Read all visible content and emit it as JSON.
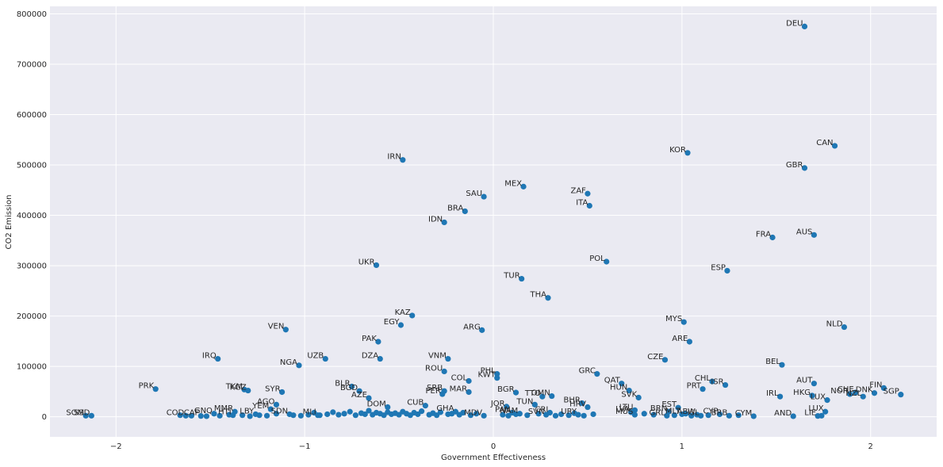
{
  "chart_data": {
    "type": "scatter",
    "xlabel": "Government Effectiveness",
    "ylabel": "CO2 Emission",
    "xlim": [
      -2.35,
      2.35
    ],
    "ylim": [
      -40000,
      815000
    ],
    "xticks": [
      -2,
      -1,
      0,
      1,
      2
    ],
    "xtick_labels": [
      "−2",
      "−1",
      "0",
      "1",
      "2"
    ],
    "yticks": [
      0,
      100000,
      200000,
      300000,
      400000,
      500000,
      600000,
      700000,
      800000
    ],
    "ytick_labels": [
      "0",
      "100000",
      "200000",
      "300000",
      "400000",
      "500000",
      "600000",
      "700000",
      "800000"
    ],
    "grid": true,
    "marker_color": "#1f77b4",
    "background": "#eaeaf2",
    "points": [
      {
        "label": "DEU",
        "x": 1.65,
        "y": 775000
      },
      {
        "label": "CAN",
        "x": 1.81,
        "y": 538000
      },
      {
        "label": "KOR",
        "x": 1.03,
        "y": 524000
      },
      {
        "label": "GBR",
        "x": 1.65,
        "y": 494000
      },
      {
        "label": "IRN",
        "x": -0.48,
        "y": 510000
      },
      {
        "label": "MEX",
        "x": 0.16,
        "y": 457000
      },
      {
        "label": "ZAF",
        "x": 0.5,
        "y": 443000
      },
      {
        "label": "SAU",
        "x": -0.05,
        "y": 437000
      },
      {
        "label": "ITA",
        "x": 0.51,
        "y": 419000
      },
      {
        "label": "BRA",
        "x": -0.15,
        "y": 408000
      },
      {
        "label": "IDN",
        "x": -0.26,
        "y": 386000
      },
      {
        "label": "AUS",
        "x": 1.7,
        "y": 361000
      },
      {
        "label": "FRA",
        "x": 1.48,
        "y": 356000
      },
      {
        "label": "POL",
        "x": 0.6,
        "y": 308000
      },
      {
        "label": "UKR",
        "x": -0.62,
        "y": 301000
      },
      {
        "label": "ESP",
        "x": 1.24,
        "y": 290000
      },
      {
        "label": "TUR",
        "x": 0.15,
        "y": 274000
      },
      {
        "label": "THA",
        "x": 0.29,
        "y": 236000
      },
      {
        "label": "KAZ",
        "x": -0.43,
        "y": 201000
      },
      {
        "label": "MYS",
        "x": 1.01,
        "y": 188000
      },
      {
        "label": "EGY",
        "x": -0.49,
        "y": 182000
      },
      {
        "label": "NLD",
        "x": 1.86,
        "y": 178000
      },
      {
        "label": "VEN",
        "x": -1.1,
        "y": 173000
      },
      {
        "label": "ARG",
        "x": -0.06,
        "y": 172000
      },
      {
        "label": "ARE",
        "x": 1.04,
        "y": 149000
      },
      {
        "label": "PAK",
        "x": -0.61,
        "y": 149000
      },
      {
        "label": "IRQ",
        "x": -1.46,
        "y": 115000
      },
      {
        "label": "UZB",
        "x": -0.89,
        "y": 115000
      },
      {
        "label": "DZA",
        "x": -0.6,
        "y": 115000
      },
      {
        "label": "VNM",
        "x": -0.24,
        "y": 115000
      },
      {
        "label": "CZE",
        "x": 0.91,
        "y": 113000
      },
      {
        "label": "BEL",
        "x": 1.53,
        "y": 103000
      },
      {
        "label": "NGA",
        "x": -1.03,
        "y": 102000
      },
      {
        "label": "ROU",
        "x": -0.26,
        "y": 90000
      },
      {
        "label": "PHL",
        "x": 0.02,
        "y": 85000
      },
      {
        "label": "GRC",
        "x": 0.55,
        "y": 85000
      },
      {
        "label": "KWT",
        "x": 0.02,
        "y": 77000
      },
      {
        "label": "COL",
        "x": -0.13,
        "y": 71000
      },
      {
        "label": "CHL",
        "x": 1.16,
        "y": 70000
      },
      {
        "label": "QAT",
        "x": 0.68,
        "y": 66000
      },
      {
        "label": "AUT",
        "x": 1.7,
        "y": 66000
      },
      {
        "label": "ISR",
        "x": 1.23,
        "y": 63000
      },
      {
        "label": "FIN",
        "x": 2.07,
        "y": 57000
      },
      {
        "label": "PRK",
        "x": -1.79,
        "y": 55000
      },
      {
        "label": "PRT",
        "x": 1.11,
        "y": 55000
      },
      {
        "label": "HUN",
        "x": 0.72,
        "y": 52000
      },
      {
        "label": "TKM",
        "x": -1.32,
        "y": 54000
      },
      {
        "label": "KGZ",
        "x": -1.3,
        "y": 52000
      },
      {
        "label": "BLR",
        "x": -0.75,
        "y": 60000
      },
      {
        "label": "SYR",
        "x": -1.12,
        "y": 49000
      },
      {
        "label": "BGD",
        "x": -0.71,
        "y": 51000
      },
      {
        "label": "SRB",
        "x": -0.26,
        "y": 51000
      },
      {
        "label": "MAR",
        "x": -0.13,
        "y": 49000
      },
      {
        "label": "PER",
        "x": -0.27,
        "y": 45000
      },
      {
        "label": "BGR",
        "x": 0.12,
        "y": 48000
      },
      {
        "label": "CHE",
        "x": 1.92,
        "y": 48000
      },
      {
        "label": "NOR",
        "x": 1.89,
        "y": 45000
      },
      {
        "label": "DNK",
        "x": 2.02,
        "y": 47000
      },
      {
        "label": "SGP",
        "x": 2.16,
        "y": 44000
      },
      {
        "label": "NZL",
        "x": 1.96,
        "y": 40000
      },
      {
        "label": "HKG",
        "x": 1.69,
        "y": 42000
      },
      {
        "label": "IRL",
        "x": 1.52,
        "y": 40000
      },
      {
        "label": "OMN",
        "x": 0.31,
        "y": 41000
      },
      {
        "label": "TTO",
        "x": 0.26,
        "y": 40000
      },
      {
        "label": "SVK",
        "x": 0.77,
        "y": 38000
      },
      {
        "label": "LUX",
        "x": 1.76,
        "y": 10000
      },
      {
        "label": "ARE2",
        "x": 1.77,
        "y": 33000
      },
      {
        "label": "AZE",
        "x": -0.66,
        "y": 37000
      },
      {
        "label": "EST",
        "x": 0.98,
        "y": 18000
      },
      {
        "label": "BHR",
        "x": 0.47,
        "y": 27000
      },
      {
        "label": "HRV",
        "x": 0.5,
        "y": 19000
      },
      {
        "label": "JOR",
        "x": 0.07,
        "y": 20000
      },
      {
        "label": "TUN",
        "x": 0.22,
        "y": 24000
      },
      {
        "label": "CUB",
        "x": -0.36,
        "y": 22000
      },
      {
        "label": "DOM",
        "x": -0.56,
        "y": 19000
      },
      {
        "label": "AGO",
        "x": -1.15,
        "y": 24000
      },
      {
        "label": "YEM",
        "x": -1.18,
        "y": 15000
      },
      {
        "label": "LTU",
        "x": 0.75,
        "y": 13000
      },
      {
        "label": "LVA",
        "x": 0.73,
        "y": 9000
      },
      {
        "label": "SOM",
        "x": -2.16,
        "y": 2000
      },
      {
        "label": "SSD",
        "x": -2.13,
        "y": 2000
      },
      {
        "label": "COD",
        "x": -1.63,
        "y": 2000
      },
      {
        "label": "CAF",
        "x": -1.55,
        "y": 1500
      },
      {
        "label": "GNQ",
        "x": -1.48,
        "y": 6000
      },
      {
        "label": "MMR",
        "x": -1.37,
        "y": 10000
      },
      {
        "label": "HTI",
        "x": -1.38,
        "y": 3000
      },
      {
        "label": "LBY",
        "x": -1.26,
        "y": 5000
      },
      {
        "label": "SDN",
        "x": -1.08,
        "y": 5000
      },
      {
        "label": "MLI",
        "x": -0.93,
        "y": 3000
      },
      {
        "label": "GHA",
        "x": -0.2,
        "y": 10000
      },
      {
        "label": "MDV",
        "x": -0.05,
        "y": 2000
      },
      {
        "label": "CRI",
        "x": 0.3,
        "y": 8000
      },
      {
        "label": "SVN",
        "x": 0.28,
        "y": 4000
      },
      {
        "label": "NAM",
        "x": 0.14,
        "y": 6000
      },
      {
        "label": "PAN",
        "x": 0.1,
        "y": 8000
      },
      {
        "label": "URY",
        "x": 0.45,
        "y": 4000
      },
      {
        "label": "MUS",
        "x": 0.75,
        "y": 4000
      },
      {
        "label": "BRN",
        "x": 0.93,
        "y": 10000
      },
      {
        "label": "ISL",
        "x": 1.1,
        "y": 2000
      },
      {
        "label": "CYP",
        "x": 1.2,
        "y": 5000
      },
      {
        "label": "BRB",
        "x": 1.25,
        "y": 2000
      },
      {
        "label": "CYM",
        "x": 1.38,
        "y": 1000
      },
      {
        "label": "AND",
        "x": 1.59,
        "y": 1000
      },
      {
        "label": "LIE",
        "x": 1.72,
        "y": 1500
      },
      {
        "label": "MLT",
        "x": 1.0,
        "y": 5000
      },
      {
        "label": "GRL",
        "x": 0.92,
        "y": 2000
      },
      {
        "label": "ABW",
        "x": 1.08,
        "y": 4000
      }
    ],
    "cluster_points": [
      [
        -1.66,
        3000
      ],
      [
        -1.6,
        2000
      ],
      [
        -1.52,
        1000
      ],
      [
        -1.45,
        2000
      ],
      [
        -1.4,
        4000
      ],
      [
        -1.33,
        3000
      ],
      [
        -1.29,
        1000
      ],
      [
        -1.24,
        3000
      ],
      [
        -1.2,
        2000
      ],
      [
        -1.15,
        6000
      ],
      [
        -1.06,
        3000
      ],
      [
        -1.02,
        2000
      ],
      [
        -0.98,
        4000
      ],
      [
        -0.95,
        8000
      ],
      [
        -0.92,
        3000
      ],
      [
        -0.88,
        5000
      ],
      [
        -0.85,
        9000
      ],
      [
        -0.82,
        4000
      ],
      [
        -0.79,
        6000
      ],
      [
        -0.76,
        10000
      ],
      [
        -0.73,
        3000
      ],
      [
        -0.7,
        7000
      ],
      [
        -0.68,
        5000
      ],
      [
        -0.66,
        12000
      ],
      [
        -0.64,
        4000
      ],
      [
        -0.62,
        8000
      ],
      [
        -0.6,
        6000
      ],
      [
        -0.58,
        3000
      ],
      [
        -0.56,
        9000
      ],
      [
        -0.54,
        5000
      ],
      [
        -0.52,
        7000
      ],
      [
        -0.5,
        4000
      ],
      [
        -0.48,
        10000
      ],
      [
        -0.46,
        6000
      ],
      [
        -0.44,
        3000
      ],
      [
        -0.42,
        8000
      ],
      [
        -0.4,
        5000
      ],
      [
        -0.38,
        11000
      ],
      [
        -0.34,
        4000
      ],
      [
        -0.32,
        7000
      ],
      [
        -0.3,
        3000
      ],
      [
        -0.28,
        9000
      ],
      [
        -0.24,
        5000
      ],
      [
        -0.22,
        6000
      ],
      [
        -0.18,
        4000
      ],
      [
        -0.16,
        8000
      ],
      [
        -0.12,
        3000
      ],
      [
        -0.09,
        6000
      ],
      [
        0.05,
        4000
      ],
      [
        0.08,
        2000
      ],
      [
        0.12,
        5000
      ],
      [
        0.18,
        3000
      ],
      [
        0.24,
        6000
      ],
      [
        0.33,
        2000
      ],
      [
        0.36,
        5000
      ],
      [
        0.4,
        3000
      ],
      [
        0.43,
        7000
      ],
      [
        0.48,
        2000
      ],
      [
        0.53,
        5000
      ],
      [
        0.8,
        6000
      ],
      [
        0.85,
        4000
      ],
      [
        0.96,
        3000
      ],
      [
        1.02,
        6000
      ],
      [
        1.05,
        2000
      ],
      [
        1.14,
        3000
      ],
      [
        1.74,
        2000
      ],
      [
        1.3,
        3000
      ]
    ],
    "label_text_override": {
      "ARE2": "LUX"
    }
  }
}
